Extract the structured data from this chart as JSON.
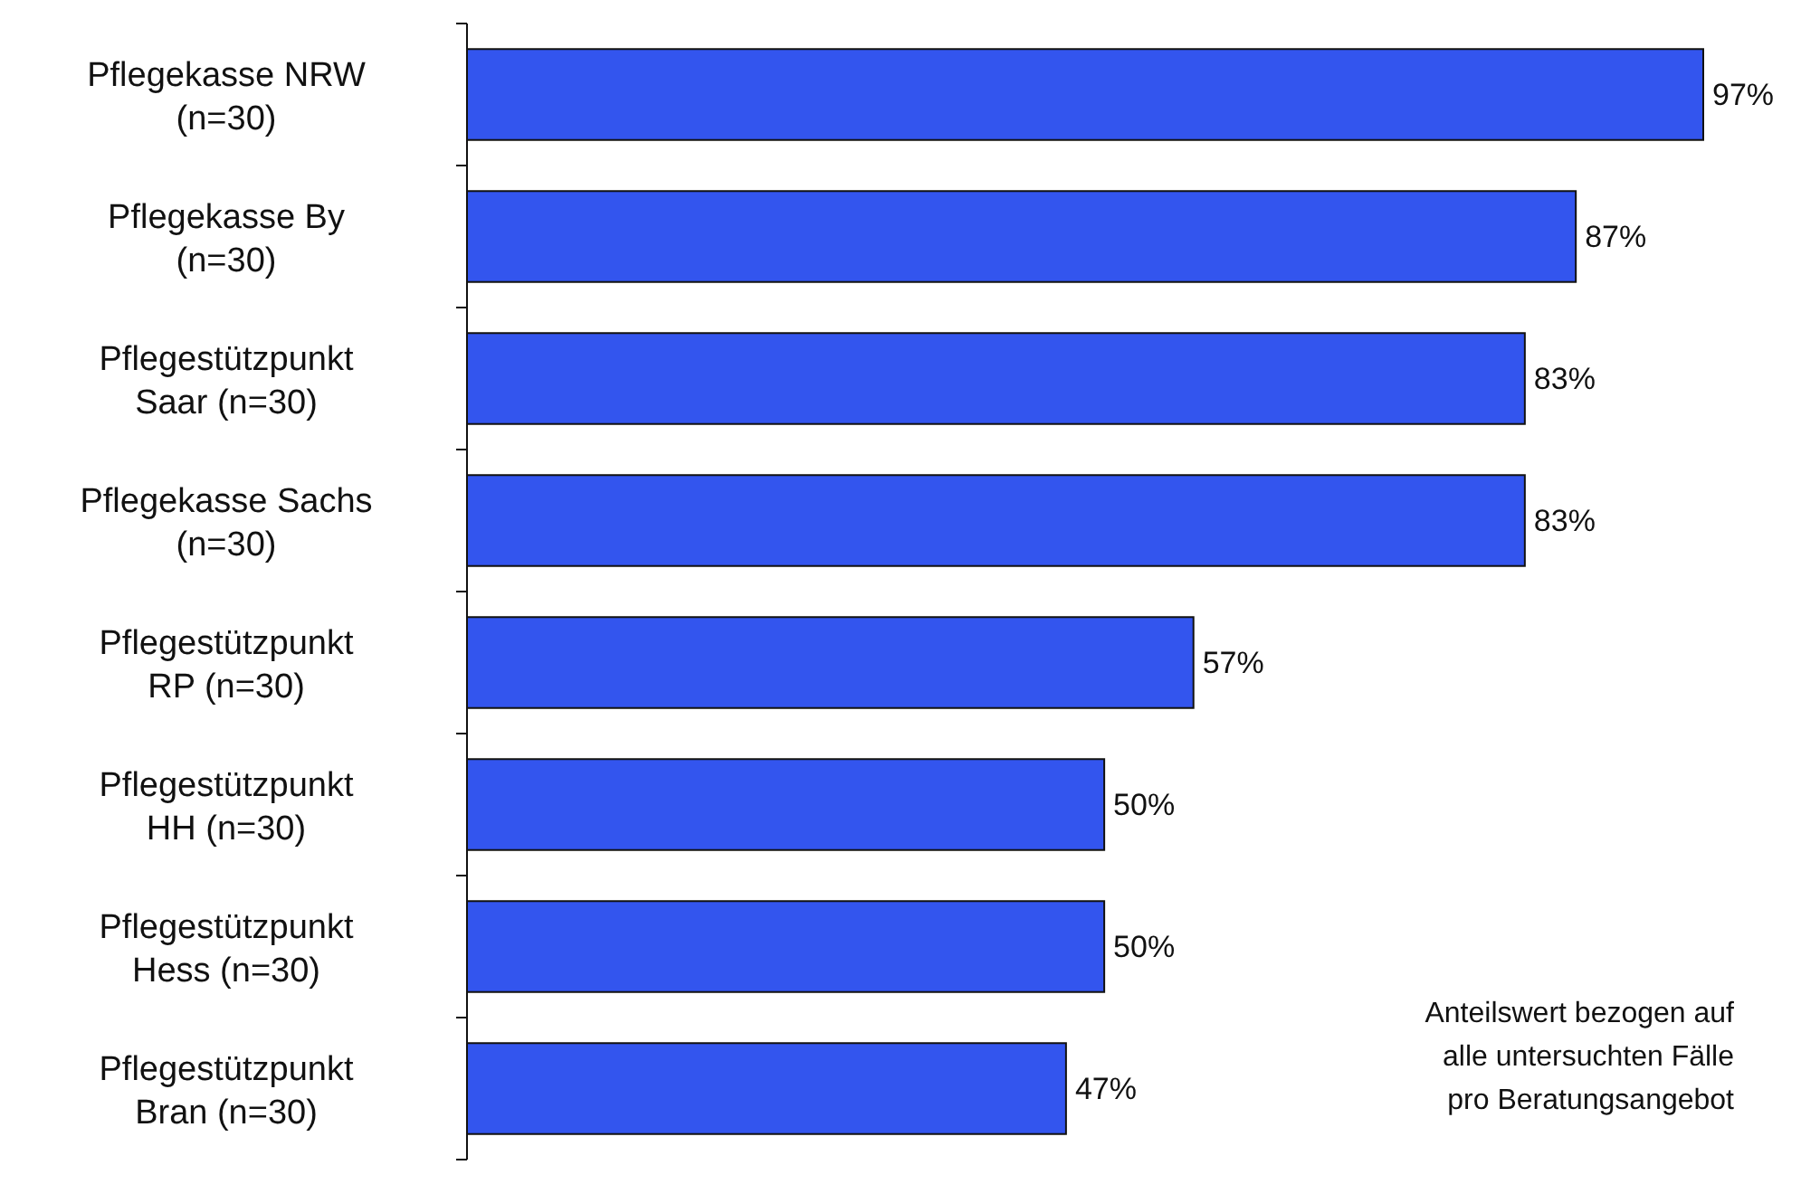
{
  "chart_data": {
    "type": "bar",
    "orientation": "horizontal",
    "categories": [
      "Pflegekasse NRW\n(n=30)",
      "Pflegekasse By\n(n=30)",
      "Pflegestützpunkt\nSaar (n=30)",
      "Pflegekasse Sachs\n(n=30)",
      "Pflegestützpunkt\nRP (n=30)",
      "Pflegestützpunkt\nHH (n=30)",
      "Pflegestützpunkt\nHess (n=30)",
      "Pflegestützpunkt\nBran (n=30)"
    ],
    "values": [
      97,
      87,
      83,
      83,
      57,
      50,
      50,
      47
    ],
    "value_labels": [
      "97%",
      "87%",
      "83%",
      "83%",
      "57%",
      "50%",
      "50%",
      "47%"
    ],
    "color": "#3355ee",
    "annotations": [
      "Anteilswert bezogen auf\nalle untersuchten Fälle\npro Beratungsangebot"
    ]
  }
}
